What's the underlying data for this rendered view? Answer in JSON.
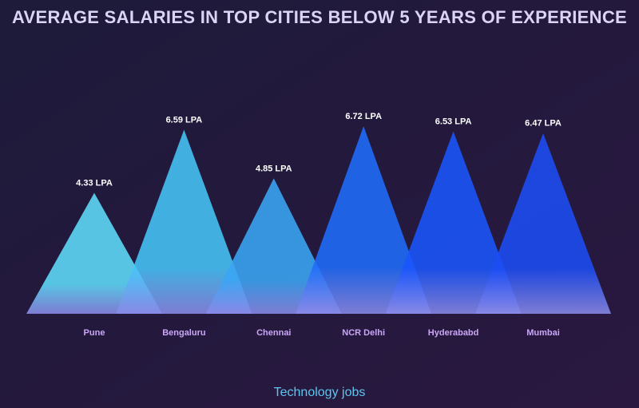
{
  "chart_data": {
    "type": "triangle",
    "title": "AVERAGE SALARIES IN TOP CITIES BELOW 5 YEARS OF EXPERIENCE",
    "categories": [
      "Pune",
      "Bengaluru",
      "Chennai",
      "NCR Delhi",
      "Hyderababd",
      "Mumbai"
    ],
    "values": [
      4.33,
      6.59,
      4.85,
      6.72,
      6.53,
      6.47
    ],
    "value_labels": [
      "4.33 LPA",
      "6.59 LPA",
      "4.85 LPA",
      "6.72 LPA",
      "6.53 LPA",
      "6.47 LPA"
    ],
    "colors": [
      "#5fdcfb",
      "#46c4f8",
      "#3aa6f5",
      "#1f6cfb",
      "#1a55fc",
      "#1c4df4"
    ],
    "footer": "Technology jobs"
  }
}
